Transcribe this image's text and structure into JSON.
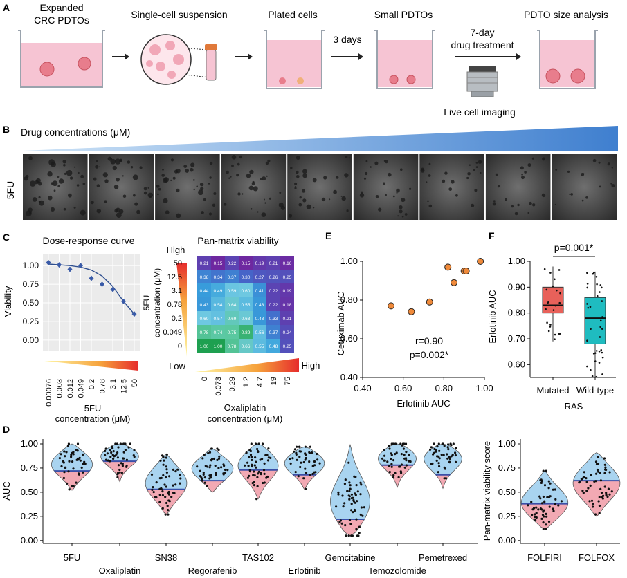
{
  "panels": {
    "A": {
      "letter": "A",
      "steps": [
        "Expanded CRC PDTOs",
        "Single-cell suspension",
        "Plated cells",
        "Small PDTOs",
        "PDTO size analysis"
      ],
      "step1_line1": "Expanded",
      "step1_line2": "CRC PDTOs",
      "arrow_3days": "3 days",
      "treatment_line1": "7-day",
      "treatment_line2": "drug treatment",
      "imaging": "Live cell imaging"
    },
    "B": {
      "letter": "B",
      "gradient_label": "Drug concentrations (μM)",
      "row_label": "5FU",
      "image_count": 9
    },
    "C": {
      "letter": "C",
      "dose_title": "Dose-response curve",
      "dose_ylabel": "Viability",
      "dose_xlabel_1": "5FU",
      "dose_xlabel_2": "concentration (μM)",
      "matrix_title": "Pan-matrix viability",
      "high": "High",
      "low": "Low",
      "matrix_ylabel_1": "5FU",
      "matrix_ylabel_2": "concentration (μM)",
      "matrix_xlabel_1": "Oxaliplatin",
      "matrix_xlabel_2": "concentration (μM)"
    },
    "E": {
      "letter": "E",
      "xlabel": "Erlotinib AUC",
      "ylabel": "Cetuximab AUC",
      "r_text": "r=0.90",
      "p_text": "p=0.002*"
    },
    "F": {
      "letter": "F",
      "ylabel": "Erlotinib AUC",
      "xlabel": "RAS",
      "pval": "p=0.001*"
    },
    "D": {
      "letter": "D",
      "ylabel": "AUC",
      "ylabel_right": "Pan-matrix viability score"
    }
  },
  "chart_data": [
    {
      "id": "dose-response",
      "type": "scatter",
      "x_tick_labels": [
        "0.00076",
        "0.003",
        "0.012",
        "0.049",
        "0.2",
        "0.78",
        "3.1",
        "12.5",
        "50"
      ],
      "y_ticks": [
        "0.00",
        "0.25",
        "0.50",
        "0.75",
        "1.00"
      ],
      "ylim": [
        -0.15,
        1.15
      ],
      "viability": [
        1.04,
        1.01,
        0.95,
        1.0,
        0.83,
        0.75,
        0.68,
        0.52,
        0.35
      ],
      "fit": [
        1.02,
        1.01,
        1.0,
        0.98,
        0.94,
        0.86,
        0.72,
        0.52,
        0.35
      ]
    },
    {
      "id": "pan-matrix",
      "type": "heatmap",
      "y_tick_labels": [
        "50",
        "12.5",
        "3.1",
        "0.78",
        "0.2",
        "0.049",
        "0"
      ],
      "x_tick_labels": [
        "0",
        "0.073",
        "0.29",
        "1.2",
        "4.7",
        "19",
        "75"
      ],
      "values": [
        [
          0.21,
          0.15,
          0.22,
          0.15,
          0.19,
          0.21,
          0.16
        ],
        [
          0.38,
          0.34,
          0.37,
          0.3,
          0.27,
          0.26,
          0.25
        ],
        [
          0.44,
          0.49,
          0.59,
          0.6,
          0.41,
          0.22,
          0.19
        ],
        [
          0.43,
          0.54,
          0.64,
          0.55,
          0.43,
          0.22,
          0.18
        ],
        [
          0.6,
          0.57,
          0.69,
          0.63,
          0.43,
          0.33,
          0.21
        ],
        [
          0.78,
          0.74,
          0.75,
          0.89,
          0.56,
          0.37,
          0.24
        ],
        [
          1.0,
          1.0,
          0.78,
          0.66,
          0.55,
          0.48,
          0.25
        ]
      ]
    },
    {
      "id": "cetuximab-vs-erlotinib",
      "type": "scatter",
      "xlim": [
        0.4,
        1.0
      ],
      "ylim": [
        0.4,
        1.0
      ],
      "x_ticks": [
        "0.40",
        "0.60",
        "0.80",
        "1.00"
      ],
      "y_ticks": [
        "0.40",
        "0.60",
        "0.80",
        "1.00"
      ],
      "points": [
        [
          0.54,
          0.77
        ],
        [
          0.64,
          0.74
        ],
        [
          0.73,
          0.79
        ],
        [
          0.82,
          0.97
        ],
        [
          0.85,
          0.89
        ],
        [
          0.9,
          0.95
        ],
        [
          0.91,
          0.95
        ],
        [
          0.98,
          1.0
        ]
      ]
    },
    {
      "id": "erlotinib-ras",
      "type": "box",
      "categories": [
        "Mutated",
        "Wild-type"
      ],
      "ylim": [
        0.55,
        1.0
      ],
      "y_ticks": [
        "0.60",
        "0.70",
        "0.80",
        "0.90",
        "1.00"
      ],
      "colors": [
        "#e8615a",
        "#1fbcc0"
      ],
      "boxes": [
        {
          "min": 0.69,
          "q1": 0.8,
          "median": 0.83,
          "q3": 0.9,
          "max": 0.98
        },
        {
          "min": 0.55,
          "q1": 0.68,
          "median": 0.78,
          "q3": 0.86,
          "max": 0.96
        }
      ],
      "points_n": [
        22,
        36
      ]
    },
    {
      "id": "auc-violins",
      "type": "violin",
      "categories": [
        "5FU",
        "Oxaliplatin",
        "SN38",
        "Regorafenib",
        "TAS102",
        "Erlotinib",
        "Gemcitabine",
        "Temozolomide",
        "Pemetrexed"
      ],
      "y_ticks": [
        "0.00",
        "0.25",
        "0.50",
        "0.75",
        "1.00"
      ],
      "ylim": [
        -0.03,
        1.05
      ],
      "min": [
        0.52,
        0.61,
        0.27,
        0.5,
        0.43,
        0.53,
        0.05,
        0.55,
        0.54
      ],
      "max": [
        1.0,
        1.0,
        0.89,
        0.95,
        1.0,
        0.97,
        0.99,
        1.0,
        1.0
      ],
      "median": [
        0.72,
        0.82,
        0.53,
        0.62,
        0.73,
        0.68,
        0.22,
        0.78,
        0.68
      ],
      "mode": [
        0.8,
        0.9,
        0.6,
        0.75,
        0.8,
        0.82,
        0.35,
        0.88,
        0.88
      ],
      "n": [
        45,
        50,
        55,
        48,
        55,
        45,
        60,
        48,
        48
      ]
    },
    {
      "id": "pan-matrix-violins",
      "type": "violin",
      "categories": [
        "FOLFIRI",
        "FOLFOX"
      ],
      "y_ticks": [
        "0.00",
        "0.25",
        "0.50",
        "0.75",
        "1.00"
      ],
      "ylim": [
        -0.03,
        1.05
      ],
      "min": [
        0.12,
        0.25
      ],
      "max": [
        0.72,
        0.91
      ],
      "median": [
        0.38,
        0.62
      ],
      "mode": [
        0.38,
        0.6
      ],
      "n": [
        55,
        55
      ]
    }
  ],
  "colors": {
    "blue_violin": "#a9d4f0",
    "pink_violin": "#f2a9b3",
    "median_line": "#3a4fa8",
    "gradient_blue": "#3f7fcf",
    "orange_point": "#f08a3a",
    "dose_point": "#3a5ba8"
  }
}
